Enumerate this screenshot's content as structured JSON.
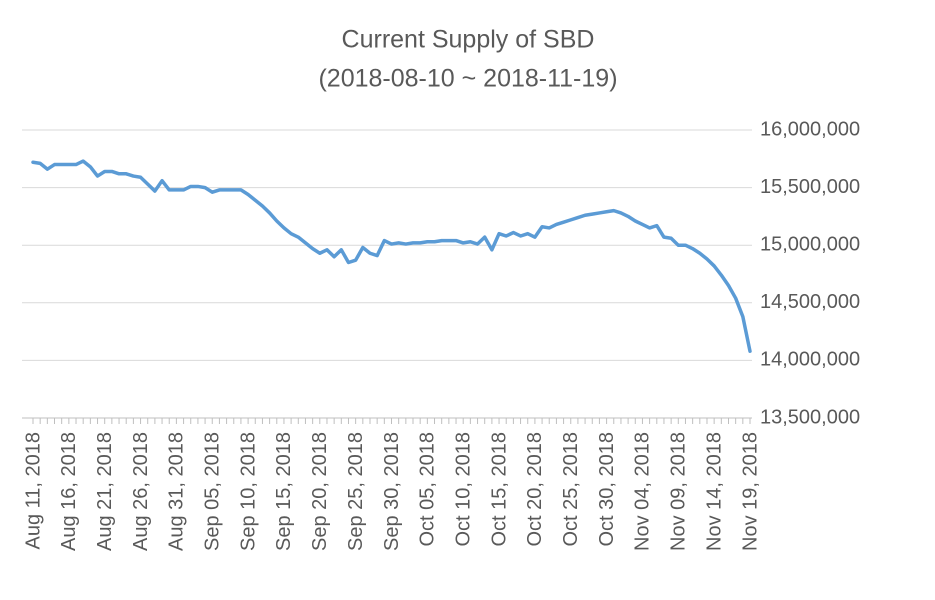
{
  "chart_data": {
    "type": "line",
    "title": "Current Supply of SBD",
    "subtitle": "(2018-08-10 ~ 2018-11-19)",
    "categories": [
      "Aug 11, 2018",
      null,
      null,
      null,
      null,
      "Aug 16, 2018",
      null,
      null,
      null,
      null,
      "Aug 21, 2018",
      null,
      null,
      null,
      null,
      "Aug 26, 2018",
      null,
      null,
      null,
      null,
      "Aug 31, 2018",
      null,
      null,
      null,
      null,
      "Sep 05, 2018",
      null,
      null,
      null,
      null,
      "Sep 10, 2018",
      null,
      null,
      null,
      null,
      "Sep 15, 2018",
      null,
      null,
      null,
      null,
      "Sep 20, 2018",
      null,
      null,
      null,
      null,
      "Sep 25, 2018",
      null,
      null,
      null,
      null,
      "Sep 30, 2018",
      null,
      null,
      null,
      null,
      "Oct 05, 2018",
      null,
      null,
      null,
      null,
      "Oct 10, 2018",
      null,
      null,
      null,
      null,
      "Oct 15, 2018",
      null,
      null,
      null,
      null,
      "Oct 20, 2018",
      null,
      null,
      null,
      null,
      "Oct 25, 2018",
      null,
      null,
      null,
      null,
      "Oct 30, 2018",
      null,
      null,
      null,
      null,
      "Nov 04, 2018",
      null,
      null,
      null,
      null,
      "Nov 09, 2018",
      null,
      null,
      null,
      null,
      "Nov 14, 2018",
      null,
      null,
      null,
      null,
      "Nov 19, 2018"
    ],
    "values": [
      15720000,
      15710000,
      15660000,
      15700000,
      15700000,
      15700000,
      15700000,
      15730000,
      15680000,
      15600000,
      15640000,
      15640000,
      15620000,
      15620000,
      15600000,
      15590000,
      15530000,
      15470000,
      15560000,
      15480000,
      15480000,
      15480000,
      15510000,
      15510000,
      15500000,
      15460000,
      15480000,
      15480000,
      15480000,
      15480000,
      15440000,
      15390000,
      15340000,
      15280000,
      15210000,
      15150000,
      15100000,
      15070000,
      15020000,
      14970000,
      14930000,
      14960000,
      14900000,
      14960000,
      14850000,
      14870000,
      14980000,
      14930000,
      14910000,
      15040000,
      15010000,
      15020000,
      15010000,
      15020000,
      15020000,
      15030000,
      15030000,
      15040000,
      15040000,
      15040000,
      15020000,
      15030000,
      15010000,
      15070000,
      14960000,
      15100000,
      15080000,
      15110000,
      15080000,
      15100000,
      15070000,
      15160000,
      15150000,
      15180000,
      15200000,
      15220000,
      15240000,
      15260000,
      15270000,
      15280000,
      15290000,
      15300000,
      15280000,
      15250000,
      15210000,
      15180000,
      15150000,
      15170000,
      15070000,
      15060000,
      15000000,
      15000000,
      14970000,
      14930000,
      14880000,
      14820000,
      14740000,
      14650000,
      14540000,
      14380000,
      14080000
    ],
    "color": "#5b9bd5",
    "ylim": [
      13500000,
      16000000
    ],
    "yticks": [
      {
        "value": 13500000,
        "label": "13,500,000"
      },
      {
        "value": 14000000,
        "label": "14,000,000"
      },
      {
        "value": 14500000,
        "label": "14,500,000"
      },
      {
        "value": 15000000,
        "label": "15,000,000"
      },
      {
        "value": 15500000,
        "label": "15,500,000"
      },
      {
        "value": 16000000,
        "label": "16,000,000"
      }
    ],
    "grid": true,
    "y_axis_side": "right"
  }
}
